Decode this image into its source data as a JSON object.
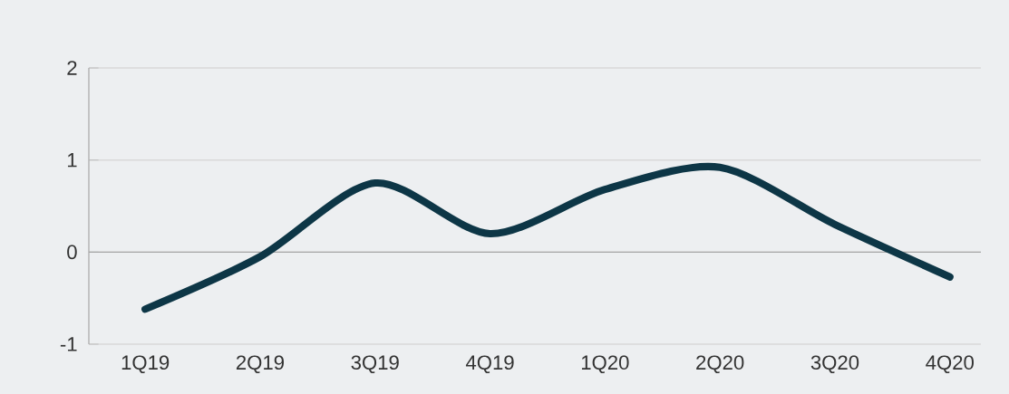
{
  "chart_data": {
    "type": "line",
    "categories": [
      "1Q19",
      "2Q19",
      "3Q19",
      "4Q19",
      "1Q20",
      "2Q20",
      "3Q20",
      "4Q20"
    ],
    "values": [
      -0.62,
      -0.05,
      0.75,
      0.2,
      0.68,
      0.92,
      0.3,
      -0.27
    ],
    "color": "#0d3646",
    "ylim": [
      -1,
      2
    ],
    "yticks": [
      -1,
      0,
      1,
      2
    ],
    "grid": "y"
  }
}
